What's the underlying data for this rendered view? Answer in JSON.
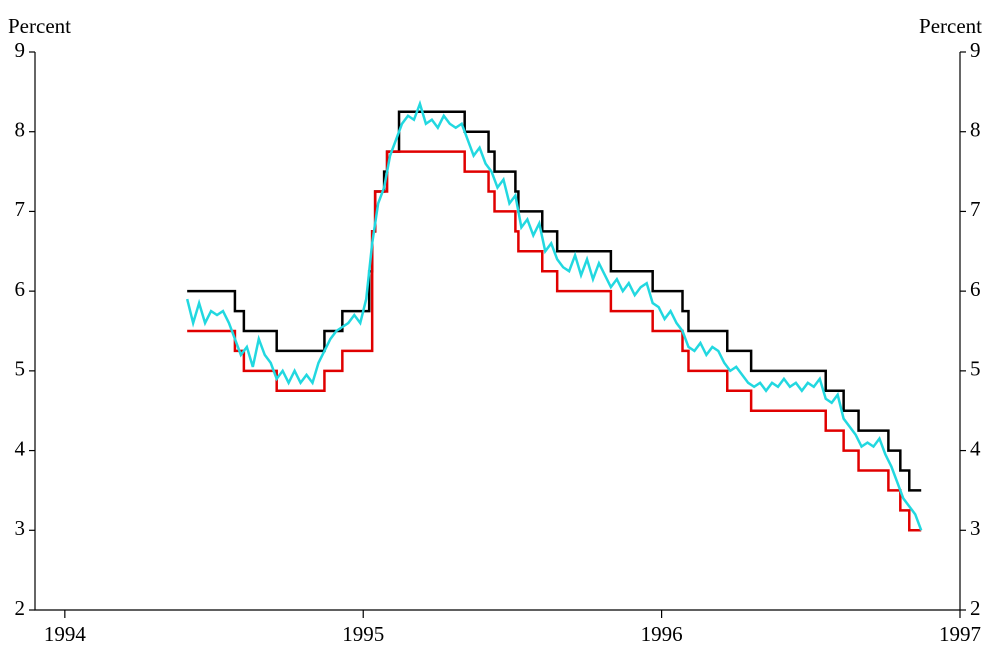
{
  "chart_data": {
    "type": "line",
    "ylabel": "Percent",
    "y2label": "Percent",
    "xlim": [
      1993.9,
      1997
    ],
    "xticks": [
      1994,
      1995,
      1996,
      1997
    ],
    "ylim": [
      2,
      9
    ],
    "yticks": [
      2,
      3,
      4,
      5,
      6,
      7,
      8,
      9
    ],
    "y2lim": [
      2,
      9
    ],
    "y2ticks": [
      2,
      3,
      4,
      5,
      6,
      7,
      8,
      9
    ],
    "series": [
      {
        "color": "#000000",
        "step": true,
        "x": [
          1994.41,
          1994.57,
          1994.6,
          1994.71,
          1994.87,
          1994.93,
          1995.02,
          1995.03,
          1995.04,
          1995.07,
          1995.08,
          1995.12,
          1995.34,
          1995.42,
          1995.44,
          1995.51,
          1995.52,
          1995.6,
          1995.65,
          1995.83,
          1995.97,
          1996.07,
          1996.09,
          1996.22,
          1996.3,
          1996.55,
          1996.61,
          1996.66,
          1996.76,
          1996.8,
          1996.83,
          1996.87
        ],
        "values": [
          6.0,
          5.75,
          5.5,
          5.25,
          5.5,
          5.75,
          6.25,
          6.75,
          7.25,
          7.5,
          7.75,
          8.25,
          8.0,
          7.75,
          7.5,
          7.25,
          7.0,
          6.75,
          6.5,
          6.25,
          6.0,
          5.75,
          5.5,
          5.25,
          5.0,
          4.75,
          4.5,
          4.25,
          4.0,
          3.75,
          3.5,
          3.5
        ]
      },
      {
        "color": "#e00000",
        "step": true,
        "x": [
          1994.41,
          1994.57,
          1994.6,
          1994.71,
          1994.87,
          1994.93,
          1995.03,
          1995.04,
          1995.08,
          1995.12,
          1995.34,
          1995.42,
          1995.44,
          1995.51,
          1995.52,
          1995.6,
          1995.65,
          1995.83,
          1995.97,
          1996.07,
          1996.09,
          1996.22,
          1996.3,
          1996.55,
          1996.61,
          1996.66,
          1996.76,
          1996.8,
          1996.83,
          1996.87
        ],
        "values": [
          5.5,
          5.25,
          5.0,
          4.75,
          5.0,
          5.25,
          6.75,
          7.25,
          7.75,
          7.75,
          7.5,
          7.25,
          7.0,
          6.75,
          6.5,
          6.25,
          6.0,
          5.75,
          5.5,
          5.25,
          5.0,
          4.75,
          4.5,
          4.25,
          4.0,
          3.75,
          3.5,
          3.25,
          3.0,
          3.0
        ]
      },
      {
        "color": "#22d8e0",
        "step": false,
        "x": [
          1994.41,
          1994.43,
          1994.45,
          1994.47,
          1994.49,
          1994.51,
          1994.53,
          1994.55,
          1994.57,
          1994.59,
          1994.61,
          1994.63,
          1994.65,
          1994.67,
          1994.69,
          1994.71,
          1994.73,
          1994.75,
          1994.77,
          1994.79,
          1994.81,
          1994.83,
          1994.85,
          1994.87,
          1994.89,
          1994.91,
          1994.93,
          1994.95,
          1994.97,
          1994.99,
          1995.01,
          1995.03,
          1995.05,
          1995.07,
          1995.09,
          1995.11,
          1995.13,
          1995.15,
          1995.17,
          1995.19,
          1995.21,
          1995.23,
          1995.25,
          1995.27,
          1995.29,
          1995.31,
          1995.33,
          1995.35,
          1995.37,
          1995.39,
          1995.41,
          1995.43,
          1995.45,
          1995.47,
          1995.49,
          1995.51,
          1995.53,
          1995.55,
          1995.57,
          1995.59,
          1995.61,
          1995.63,
          1995.65,
          1995.67,
          1995.69,
          1995.71,
          1995.73,
          1995.75,
          1995.77,
          1995.79,
          1995.81,
          1995.83,
          1995.85,
          1995.87,
          1995.89,
          1995.91,
          1995.93,
          1995.95,
          1995.97,
          1995.99,
          1996.01,
          1996.03,
          1996.05,
          1996.07,
          1996.09,
          1996.11,
          1996.13,
          1996.15,
          1996.17,
          1996.19,
          1996.21,
          1996.23,
          1996.25,
          1996.27,
          1996.29,
          1996.31,
          1996.33,
          1996.35,
          1996.37,
          1996.39,
          1996.41,
          1996.43,
          1996.45,
          1996.47,
          1996.49,
          1996.51,
          1996.53,
          1996.55,
          1996.57,
          1996.59,
          1996.61,
          1996.63,
          1996.65,
          1996.67,
          1996.69,
          1996.71,
          1996.73,
          1996.75,
          1996.77,
          1996.79,
          1996.81,
          1996.83,
          1996.85,
          1996.87
        ],
        "values": [
          5.9,
          5.6,
          5.85,
          5.6,
          5.75,
          5.7,
          5.75,
          5.6,
          5.4,
          5.2,
          5.3,
          5.05,
          5.4,
          5.2,
          5.1,
          4.9,
          5.0,
          4.85,
          5.0,
          4.85,
          4.95,
          4.85,
          5.1,
          5.25,
          5.4,
          5.5,
          5.55,
          5.6,
          5.7,
          5.6,
          5.9,
          6.6,
          7.1,
          7.3,
          7.7,
          7.9,
          8.1,
          8.2,
          8.15,
          8.35,
          8.1,
          8.15,
          8.05,
          8.2,
          8.1,
          8.05,
          8.1,
          7.9,
          7.7,
          7.8,
          7.6,
          7.5,
          7.3,
          7.4,
          7.1,
          7.2,
          6.8,
          6.9,
          6.7,
          6.85,
          6.5,
          6.6,
          6.4,
          6.3,
          6.25,
          6.45,
          6.2,
          6.4,
          6.15,
          6.35,
          6.2,
          6.05,
          6.15,
          6.0,
          6.1,
          5.95,
          6.05,
          6.1,
          5.85,
          5.8,
          5.65,
          5.75,
          5.6,
          5.5,
          5.3,
          5.25,
          5.35,
          5.2,
          5.3,
          5.25,
          5.1,
          5.0,
          5.05,
          4.95,
          4.85,
          4.8,
          4.85,
          4.75,
          4.85,
          4.8,
          4.9,
          4.8,
          4.85,
          4.75,
          4.85,
          4.8,
          4.9,
          4.65,
          4.6,
          4.7,
          4.4,
          4.3,
          4.2,
          4.05,
          4.1,
          4.05,
          4.15,
          3.95,
          3.8,
          3.6,
          3.4,
          3.3,
          3.2,
          3.0
        ]
      }
    ]
  }
}
